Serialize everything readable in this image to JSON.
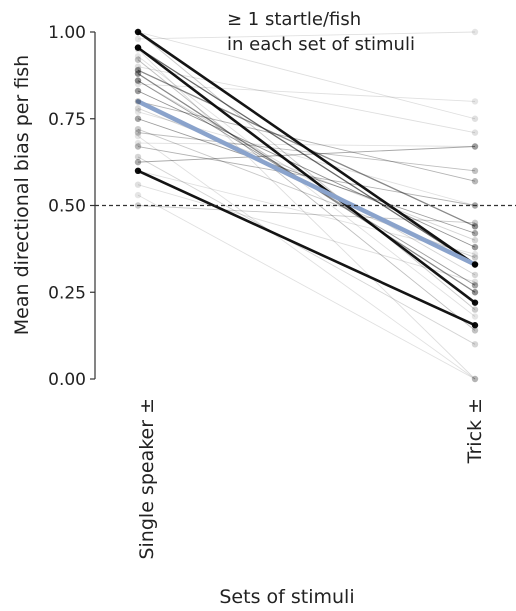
{
  "chart_data": {
    "type": "line",
    "annotation": [
      "≥ 1 startle/fish",
      "in each set of stimuli"
    ],
    "xlabel": "Sets of stimuli",
    "ylabel": "Mean directional bias per fish",
    "categories": [
      "Single speaker ±",
      "Trick ±"
    ],
    "ylim": [
      0,
      1
    ],
    "yticks": [
      0,
      0.25,
      0.5,
      0.75,
      1
    ],
    "ytick_labels": [
      "0.00",
      "0.25",
      "0.50",
      "0.75",
      "1.00"
    ],
    "reference_line": {
      "y": 0.5,
      "style": "dashed"
    },
    "colors": {
      "fish_line": "#000000",
      "mean_line": "#8aa3cc",
      "reference": "#333333"
    },
    "mean_series": {
      "values": [
        0.8,
        0.33
      ]
    },
    "series": [
      {
        "values": [
          1.0,
          0.33
        ],
        "weight": 0.95
      },
      {
        "values": [
          0.955,
          0.22
        ],
        "weight": 0.95
      },
      {
        "values": [
          0.6,
          0.155
        ],
        "weight": 0.95
      },
      {
        "values": [
          0.955,
          0.33
        ],
        "weight": 0.7
      },
      {
        "values": [
          0.89,
          0.44
        ],
        "weight": 0.55
      },
      {
        "values": [
          0.88,
          0.25
        ],
        "weight": 0.55
      },
      {
        "values": [
          0.83,
          0.38
        ],
        "weight": 0.5
      },
      {
        "values": [
          0.86,
          0.27
        ],
        "weight": 0.45
      },
      {
        "values": [
          0.75,
          0.42
        ],
        "weight": 0.45
      },
      {
        "values": [
          0.625,
          0.67
        ],
        "weight": 0.4
      },
      {
        "values": [
          0.67,
          0.5
        ],
        "weight": 0.35
      },
      {
        "values": [
          0.8,
          0.57
        ],
        "weight": 0.35
      },
      {
        "values": [
          0.71,
          0.6
        ],
        "weight": 0.3
      },
      {
        "values": [
          0.92,
          0.14
        ],
        "weight": 0.3
      },
      {
        "values": [
          1.0,
          0.2
        ],
        "weight": 0.25
      },
      {
        "values": [
          0.5,
          0.45
        ],
        "weight": 0.25
      },
      {
        "values": [
          0.72,
          0.35
        ],
        "weight": 0.25
      },
      {
        "values": [
          0.86,
          0.3
        ],
        "weight": 0.2
      },
      {
        "values": [
          0.78,
          0.4
        ],
        "weight": 0.2
      },
      {
        "values": [
          0.64,
          0.1
        ],
        "weight": 0.2
      },
      {
        "values": [
          1.0,
          0.75
        ],
        "weight": 0.15
      },
      {
        "values": [
          0.9,
          0.71
        ],
        "weight": 0.15
      },
      {
        "values": [
          0.56,
          0.28
        ],
        "weight": 0.15
      },
      {
        "values": [
          0.95,
          0.0
        ],
        "weight": 0.15
      },
      {
        "values": [
          0.7,
          0.0
        ],
        "weight": 0.12
      },
      {
        "values": [
          0.53,
          0.0
        ],
        "weight": 0.12
      },
      {
        "values": [
          0.98,
          1.0
        ],
        "weight": 0.08
      },
      {
        "values": [
          0.85,
          0.8
        ],
        "weight": 0.08
      },
      {
        "values": [
          0.68,
          0.67
        ],
        "weight": 0.1
      },
      {
        "values": [
          0.77,
          0.5
        ],
        "weight": 0.1
      },
      {
        "values": [
          0.6,
          0.36
        ],
        "weight": 0.1
      },
      {
        "values": [
          0.93,
          0.18
        ],
        "weight": 0.1
      }
    ]
  }
}
